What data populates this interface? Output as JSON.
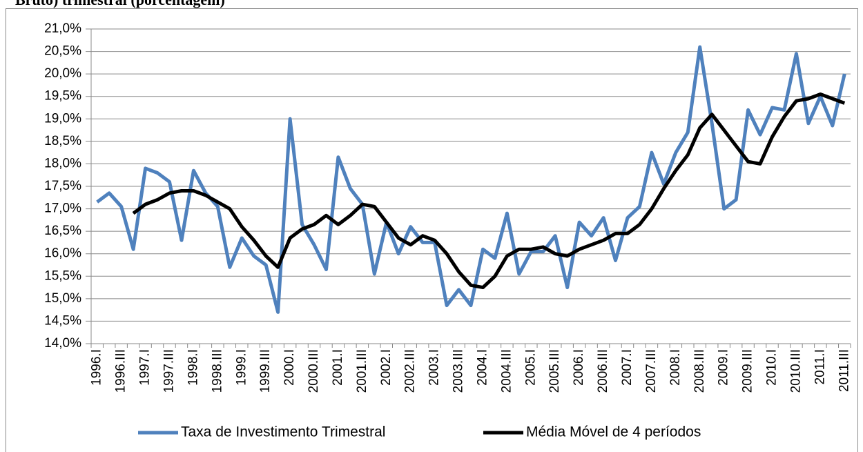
{
  "chart_data": {
    "type": "line",
    "title": "Bruto) trimestral (porcentagem)",
    "categories": [
      "1996.I",
      null,
      "1996.III",
      null,
      "1997.I",
      null,
      "1997.III",
      null,
      "1998.I",
      null,
      "1998.III",
      null,
      "1999.I",
      null,
      "1999.III",
      null,
      "2000.I",
      null,
      "2000.III",
      null,
      "2001.I",
      null,
      "2001.III",
      null,
      "2002.I",
      null,
      "2002.III",
      null,
      "2003.I",
      null,
      "2003.III",
      null,
      "2004.I",
      null,
      "2004.III",
      null,
      "2005.I",
      null,
      "2005.III",
      null,
      "2006.I",
      null,
      "2006.III",
      null,
      "2007.I",
      null,
      "2007.III",
      null,
      "2008.I",
      null,
      "2008.III",
      null,
      "2009.I",
      null,
      "2009.III",
      null,
      "2010.I",
      null,
      "2010.III",
      null,
      "2011.I",
      null,
      "2011.III"
    ],
    "series": [
      {
        "name": "Taxa de Investimento Trimestral",
        "color": "#4f81bd",
        "values": [
          17.15,
          17.35,
          17.05,
          16.1,
          17.9,
          17.8,
          17.6,
          16.3,
          17.85,
          17.35,
          17.05,
          15.7,
          16.35,
          15.95,
          15.75,
          14.7,
          19.0,
          16.65,
          16.2,
          15.65,
          18.15,
          17.45,
          17.1,
          15.55,
          16.7,
          16.0,
          16.6,
          16.25,
          16.25,
          14.85,
          15.2,
          14.85,
          16.1,
          15.9,
          16.9,
          15.55,
          16.05,
          16.05,
          16.4,
          15.25,
          16.7,
          16.4,
          16.8,
          15.85,
          16.8,
          17.05,
          18.25,
          17.55,
          18.25,
          18.7,
          20.6,
          18.9,
          17.0,
          17.2,
          19.2,
          18.65,
          19.25,
          19.2,
          20.45,
          18.9,
          19.5,
          18.85,
          20.0
        ]
      },
      {
        "name": "Média Móvel de 4 períodos",
        "color": "#000000",
        "values": [
          null,
          null,
          null,
          16.9,
          17.1,
          17.2,
          17.35,
          17.4,
          17.4,
          17.3,
          17.15,
          17.0,
          16.6,
          16.3,
          15.95,
          15.7,
          16.35,
          16.55,
          16.65,
          16.85,
          16.65,
          16.85,
          17.1,
          17.05,
          16.7,
          16.35,
          16.2,
          16.4,
          16.3,
          16.0,
          15.6,
          15.3,
          15.25,
          15.5,
          15.95,
          16.1,
          16.1,
          16.15,
          16.0,
          15.95,
          16.1,
          16.2,
          16.3,
          16.45,
          16.45,
          16.65,
          17.0,
          17.45,
          17.85,
          18.2,
          18.8,
          19.1,
          18.75,
          18.4,
          18.05,
          18.0,
          18.6,
          19.05,
          19.4,
          19.45,
          19.55,
          19.45,
          19.35
        ]
      }
    ],
    "ylim": [
      14.0,
      21.0
    ],
    "yticks": [
      {
        "value": 14.0,
        "label": "14,0%"
      },
      {
        "value": 14.5,
        "label": "14,5%"
      },
      {
        "value": 15.0,
        "label": "15,0%"
      },
      {
        "value": 15.5,
        "label": "15,5%"
      },
      {
        "value": 16.0,
        "label": "16,0%"
      },
      {
        "value": 16.5,
        "label": "16,5%"
      },
      {
        "value": 17.0,
        "label": "17,0%"
      },
      {
        "value": 17.5,
        "label": "17,5%"
      },
      {
        "value": 18.0,
        "label": "18,0%"
      },
      {
        "value": 18.5,
        "label": "18,5%"
      },
      {
        "value": 19.0,
        "label": "19,0%"
      },
      {
        "value": 19.5,
        "label": "19,5%"
      },
      {
        "value": 20.0,
        "label": "20,0%"
      },
      {
        "value": 20.5,
        "label": "20,5%"
      },
      {
        "value": 21.0,
        "label": "21,0%"
      }
    ],
    "grid": true,
    "legend": "bottom"
  }
}
